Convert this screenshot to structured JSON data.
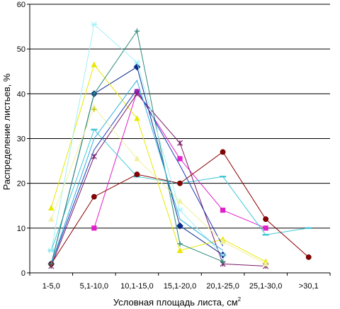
{
  "chart_data": {
    "type": "line",
    "title": "",
    "xlabel": "Условная площадь листа, см",
    "xlabel_sup": "2",
    "ylabel": "Распределение листьев, %",
    "categories": [
      "1-5,0",
      "5,1-10,0",
      "10,1-15,0",
      "15,1-20,0",
      "20,1-25,0",
      "25,1-30,0",
      ">30,1"
    ],
    "ylim": [
      0,
      60
    ],
    "yticks": [
      "0",
      "10",
      "20",
      "30",
      "40",
      "50",
      "60"
    ],
    "grid": true,
    "legend": "none",
    "series": [
      {
        "color": "#0a2a8a",
        "marker": "diamond",
        "values": [
          2,
          40,
          46,
          10.5,
          4,
          null,
          null
        ]
      },
      {
        "color": "#e020c8",
        "marker": "square",
        "values": [
          null,
          10,
          40.5,
          25.5,
          14,
          10,
          null
        ]
      },
      {
        "color": "#e8e800",
        "marker": "triangle",
        "values": [
          14.5,
          46.5,
          34.5,
          5,
          7.5,
          2.5,
          null
        ]
      },
      {
        "color": "#40c8d8",
        "marker": "dash",
        "values": [
          5,
          32,
          21.5,
          20,
          21.5,
          8.5,
          10
        ]
      },
      {
        "color": "#7a1a6a",
        "marker": "star",
        "values": [
          1.5,
          26,
          40,
          29,
          2,
          1.5,
          null
        ]
      },
      {
        "color": "#8b0000",
        "marker": "circle",
        "values": [
          2,
          17,
          22,
          20,
          27,
          12,
          3.5
        ]
      },
      {
        "color": "#2a8a7a",
        "marker": "plus",
        "values": [
          2,
          40,
          54,
          6.5,
          2.5,
          null,
          null
        ]
      },
      {
        "color": "#1a3ab8",
        "marker": "none",
        "values": [
          2,
          27.5,
          41,
          24,
          6,
          null,
          null
        ]
      },
      {
        "color": "#a0f0f8",
        "marker": "asterisk",
        "values": [
          5,
          55.5,
          47,
          14,
          4,
          null,
          null
        ]
      },
      {
        "color": "#f0f0a0",
        "marker": "triangle",
        "values": [
          12,
          37,
          25.5,
          16,
          7,
          2,
          null
        ]
      },
      {
        "color": "#c0c000",
        "marker": "plus",
        "values": [
          null,
          36.5,
          null,
          null,
          null,
          null,
          null
        ]
      },
      {
        "color": "#30b0e0",
        "marker": "none",
        "values": [
          2,
          30,
          43,
          12,
          5,
          null,
          null
        ]
      }
    ]
  }
}
